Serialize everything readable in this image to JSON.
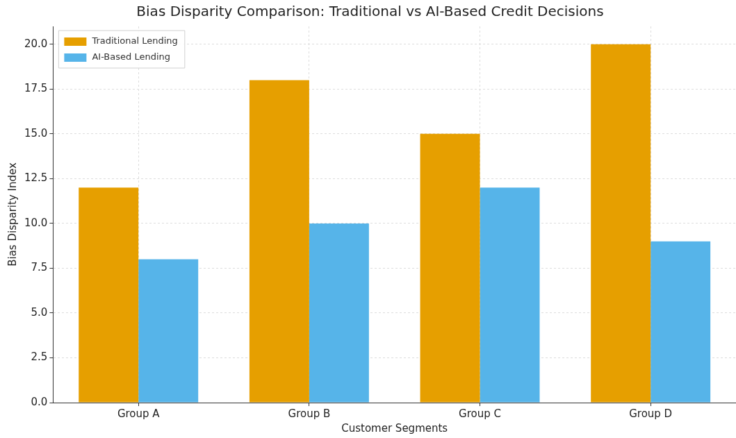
{
  "chart_data": {
    "type": "bar",
    "title": "Bias Disparity Comparison: Traditional vs AI-Based Credit Decisions",
    "xlabel": "Customer Segments",
    "ylabel": "Bias Disparity Index",
    "categories": [
      "Group A",
      "Group B",
      "Group C",
      "Group D"
    ],
    "series": [
      {
        "name": "Traditional Lending",
        "color": "#e69f00",
        "values": [
          12,
          18,
          15,
          20
        ]
      },
      {
        "name": "AI-Based Lending",
        "color": "#56b4e9",
        "values": [
          8,
          10,
          12,
          9
        ]
      }
    ],
    "ylim": [
      0,
      21
    ],
    "yticks": [
      {
        "value": 0,
        "label": "0.0"
      },
      {
        "value": 2.5,
        "label": "2.5"
      },
      {
        "value": 5,
        "label": "5.0"
      },
      {
        "value": 7.5,
        "label": "7.5"
      },
      {
        "value": 10,
        "label": "10.0"
      },
      {
        "value": 12.5,
        "label": "12.5"
      },
      {
        "value": 15,
        "label": "15.0"
      },
      {
        "value": 17.5,
        "label": "17.5"
      },
      {
        "value": 20,
        "label": "20.0"
      }
    ],
    "grid": true,
    "legend": "top left"
  }
}
